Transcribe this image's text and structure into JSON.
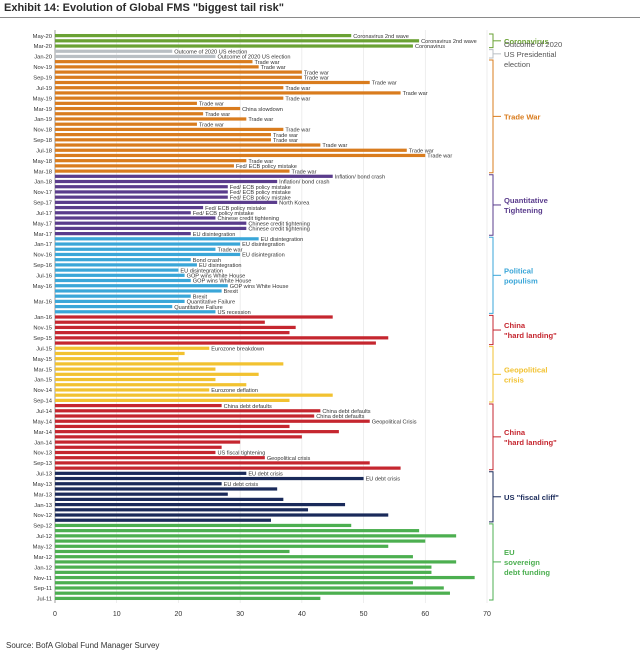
{
  "chart_data": {
    "type": "bar",
    "orientation": "horizontal",
    "title": "Exhibit 14: Evolution of Global FMS \"biggest tail risk\"",
    "source": "Source: BofA Global Fund Manager Survey",
    "xlim": [
      0,
      70
    ],
    "xticks": [
      0,
      10,
      20,
      30,
      40,
      50,
      60,
      70
    ],
    "colors": {
      "Coronavirus": "#6aa234",
      "Outcome of 2020 US Presidential election": "#b9bfc4",
      "Trade War": "#d97c1e",
      "Quantitative Tightening": "#5a3c8c",
      "Political populism": "#3aa6d8",
      "China \"hard landing\" 2015": "#c5262f",
      "Geopolitical crisis": "#f2c230",
      "China \"hard landing\" 2014": "#c5262f",
      "US \"fiscal cliff\"": "#1a2a5a",
      "EU sovereign debt funding": "#4caf50"
    },
    "series": [
      {
        "name": "Coronavirus",
        "category_labels": [
          "Coronavirus"
        ],
        "bars": [
          {
            "month": "May-20",
            "value": 48,
            "label": "Coronavirus 2nd wave"
          },
          {
            "month": "Apr-20",
            "value": 59,
            "label": "Coronavirus 2nd wave"
          },
          {
            "month": "Mar-20",
            "value": 58,
            "label": "Coronavirus"
          }
        ]
      },
      {
        "name": "Outcome of 2020 US Presidential election",
        "category_labels": [
          "Outcome of 2020",
          "US Presidential",
          "election"
        ],
        "bars": [
          {
            "month": "Feb-20",
            "value": 19,
            "label": "Outcome of 2020 US election"
          },
          {
            "month": "Jan-20",
            "value": 26,
            "label": "Outcome of 2020 US election"
          }
        ]
      },
      {
        "name": "Trade War",
        "category_labels": [
          "Trade War"
        ],
        "bars": [
          {
            "month": "Dec-19",
            "value": 32,
            "label": "Trade war"
          },
          {
            "month": "Nov-19",
            "value": 33,
            "label": "Trade war"
          },
          {
            "month": "Oct-19",
            "value": 40,
            "label": "Trade war"
          },
          {
            "month": "Sep-19",
            "value": 40,
            "label": "Trade war"
          },
          {
            "month": "Aug-19",
            "value": 51,
            "label": "Trade war"
          },
          {
            "month": "Jul-19",
            "value": 37,
            "label": "Trade war"
          },
          {
            "month": "Jun-19",
            "value": 56,
            "label": "Trade war"
          },
          {
            "month": "May-19",
            "value": 37,
            "label": "Trade war"
          },
          {
            "month": "Apr-19",
            "value": 23,
            "label": "Trade war"
          },
          {
            "month": "Mar-19",
            "value": 30,
            "label": "China slowdown"
          },
          {
            "month": "Feb-19",
            "value": 24,
            "label": "Trade war"
          },
          {
            "month": "Jan-19",
            "value": 31,
            "label": "Trade war"
          },
          {
            "month": "Dec-18",
            "value": 23,
            "label": "Trade war"
          },
          {
            "month": "Nov-18",
            "value": 37,
            "label": "Trade war"
          },
          {
            "month": "Oct-18",
            "value": 35,
            "label": "Trade war"
          },
          {
            "month": "Sep-18",
            "value": 35,
            "label": "Trade war"
          },
          {
            "month": "Aug-18",
            "value": 43,
            "label": "Trade war"
          },
          {
            "month": "Jul-18",
            "value": 57,
            "label": "Trade war"
          },
          {
            "month": "Jun-18",
            "value": 60,
            "label": "Trade war"
          },
          {
            "month": "May-18",
            "value": 31,
            "label": "Trade war"
          },
          {
            "month": "Apr-18",
            "value": 29,
            "label": "Fed/ ECB policy mistake"
          },
          {
            "month": "Mar-18",
            "value": 38,
            "label": "Trade war"
          }
        ]
      },
      {
        "name": "Quantitative Tightening",
        "category_labels": [
          "Quantitative",
          "Tightening"
        ],
        "bars": [
          {
            "month": "Feb-18",
            "value": 45,
            "label": "Inflation/ bond crash"
          },
          {
            "month": "Jan-18",
            "value": 36,
            "label": "Inflation/ bond crash"
          },
          {
            "month": "Dec-17",
            "value": 28,
            "label": "Fed/ ECB policy mistake"
          },
          {
            "month": "Nov-17",
            "value": 28,
            "label": "Fed/ ECB policy mistake"
          },
          {
            "month": "Oct-17",
            "value": 28,
            "label": "Fed/ ECB policy mistake"
          },
          {
            "month": "Sep-17",
            "value": 36,
            "label": "North Korea"
          },
          {
            "month": "Aug-17",
            "value": 24,
            "label": "Fed/ ECB policy mistake"
          },
          {
            "month": "Jul-17",
            "value": 22,
            "label": "Fed/ ECB policy mistake"
          },
          {
            "month": "Jun-17",
            "value": 26,
            "label": "Chinese credit tightening"
          },
          {
            "month": "May-17",
            "value": 31,
            "label": "Chinese credit tightening"
          },
          {
            "month": "Apr-17",
            "value": 31,
            "label": "Chinese credit tightening"
          },
          {
            "month": "Mar-17",
            "value": 22,
            "label": "EU disintegration"
          }
        ]
      },
      {
        "name": "Political populism",
        "category_labels": [
          "Political",
          "populism"
        ],
        "bars": [
          {
            "month": "Feb-17",
            "value": 33,
            "label": "EU disintegration"
          },
          {
            "month": "Jan-17",
            "value": 30,
            "label": "EU disintegration"
          },
          {
            "month": "Dec-16",
            "value": 26,
            "label": "Trade war"
          },
          {
            "month": "Nov-16",
            "value": 30,
            "label": "EU disintegration"
          },
          {
            "month": "Oct-16",
            "value": 22,
            "label": "Bond crash"
          },
          {
            "month": "Sep-16",
            "value": 23,
            "label": "EU disintegration"
          },
          {
            "month": "Aug-16",
            "value": 20,
            "label": "EU disintegration"
          },
          {
            "month": "Jul-16",
            "value": 21,
            "label": "GOP wins White House"
          },
          {
            "month": "Jun-16",
            "value": 22,
            "label": "GOP wins White House"
          },
          {
            "month": "May-16",
            "value": 28,
            "label": "GOP wins White House"
          },
          {
            "month": "Apr-16",
            "value": 27,
            "label": "Brexit"
          },
          {
            "month": "Apr-16",
            "value": 22,
            "label": "Brexit"
          },
          {
            "month": "Mar-16",
            "value": 21,
            "label": "Quantitative Failure"
          },
          {
            "month": "Feb-16",
            "value": 19,
            "label": "Quantitative Failure"
          },
          {
            "month": "Feb-16",
            "value": 26,
            "label": "US recession"
          }
        ]
      },
      {
        "name": "China \"hard landing\" 2015",
        "category_labels": [
          "China",
          "\"hard landing\""
        ],
        "bars": [
          {
            "month": "Jan-16",
            "value": 45,
            "label": ""
          },
          {
            "month": "Dec-15",
            "value": 34,
            "label": ""
          },
          {
            "month": "Nov-15",
            "value": 39,
            "label": ""
          },
          {
            "month": "Oct-15",
            "value": 38,
            "label": ""
          },
          {
            "month": "Sep-15",
            "value": 54,
            "label": ""
          },
          {
            "month": "Aug-15",
            "value": 52,
            "label": ""
          }
        ]
      },
      {
        "name": "Geopolitical crisis",
        "category_labels": [
          "Geopolitical",
          "crisis"
        ],
        "bars": [
          {
            "month": "Jul-15",
            "value": 25,
            "label": "Eurozone breakdown"
          },
          {
            "month": "Jun-15",
            "value": 21,
            "label": ""
          },
          {
            "month": "May-15",
            "value": 20,
            "label": ""
          },
          {
            "month": "Apr-15",
            "value": 37,
            "label": ""
          },
          {
            "month": "Mar-15",
            "value": 26,
            "label": ""
          },
          {
            "month": "Feb-15",
            "value": 33,
            "label": ""
          },
          {
            "month": "Jan-15",
            "value": 26,
            "label": ""
          },
          {
            "month": "Dec-14",
            "value": 31,
            "label": ""
          },
          {
            "month": "Nov-14",
            "value": 25,
            "label": "Eurozone deflation"
          },
          {
            "month": "Oct-14",
            "value": 45,
            "label": ""
          },
          {
            "month": "Sep-14",
            "value": 38,
            "label": ""
          }
        ]
      },
      {
        "name": "China \"hard landing\" 2014",
        "category_labels": [
          "China",
          "\"hard landing\""
        ],
        "bars": [
          {
            "month": "Aug-14",
            "value": 27,
            "label": "China debt defaults"
          },
          {
            "month": "Jul-14",
            "value": 43,
            "label": "China debt defaults"
          },
          {
            "month": "Jun-14",
            "value": 42,
            "label": "China debt defaults"
          },
          {
            "month": "May-14",
            "value": 51,
            "label": "Geopolitical Crisis"
          },
          {
            "month": "Apr-14",
            "value": 38,
            "label": ""
          },
          {
            "month": "Mar-14",
            "value": 46,
            "label": ""
          },
          {
            "month": "Feb-14",
            "value": 40,
            "label": ""
          },
          {
            "month": "Jan-14",
            "value": 30,
            "label": ""
          },
          {
            "month": "Dec-13",
            "value": 27,
            "label": ""
          },
          {
            "month": "Nov-13",
            "value": 26,
            "label": "US fiscal tightening"
          },
          {
            "month": "Oct-13",
            "value": 34,
            "label": "Geopolitical crisis"
          },
          {
            "month": "Sep-13",
            "value": 51,
            "label": ""
          },
          {
            "month": "Aug-13",
            "value": 56,
            "label": ""
          }
        ]
      },
      {
        "name": "US \"fiscal cliff\"",
        "category_labels": [
          "US \"fiscal cliff\""
        ],
        "bars": [
          {
            "month": "Jul-13",
            "value": 31,
            "label": "EU debt crisis"
          },
          {
            "month": "Jun-13",
            "value": 50,
            "label": "EU debt crisis"
          },
          {
            "month": "May-13",
            "value": 27,
            "label": "EU debt crisis"
          },
          {
            "month": "Apr-13",
            "value": 36,
            "label": ""
          },
          {
            "month": "Mar-13",
            "value": 28,
            "label": ""
          },
          {
            "month": "Feb-13",
            "value": 37,
            "label": ""
          },
          {
            "month": "Jan-13",
            "value": 47,
            "label": ""
          },
          {
            "month": "Dec-12",
            "value": 41,
            "label": ""
          },
          {
            "month": "Nov-12",
            "value": 54,
            "label": ""
          },
          {
            "month": "Oct-12",
            "value": 35,
            "label": ""
          }
        ]
      },
      {
        "name": "EU sovereign debt funding",
        "category_labels": [
          "EU",
          "sovereign",
          "debt funding"
        ],
        "bars": [
          {
            "month": "Sep-12",
            "value": 48,
            "label": ""
          },
          {
            "month": "Aug-12",
            "value": 59,
            "label": ""
          },
          {
            "month": "Jul-12",
            "value": 65,
            "label": ""
          },
          {
            "month": "Jun-12",
            "value": 60,
            "label": ""
          },
          {
            "month": "May-12",
            "value": 54,
            "label": ""
          },
          {
            "month": "Apr-12",
            "value": 38,
            "label": ""
          },
          {
            "month": "Mar-12",
            "value": 58,
            "label": ""
          },
          {
            "month": "Feb-12",
            "value": 65,
            "label": ""
          },
          {
            "month": "Jan-12",
            "value": 61,
            "label": ""
          },
          {
            "month": "Dec-11",
            "value": 61,
            "label": ""
          },
          {
            "month": "Nov-11",
            "value": 68,
            "label": ""
          },
          {
            "month": "Oct-11",
            "value": 58,
            "label": ""
          },
          {
            "month": "Sep-11",
            "value": 63,
            "label": ""
          },
          {
            "month": "Aug-11",
            "value": 64,
            "label": ""
          },
          {
            "month": "Jul-11",
            "value": 43,
            "label": ""
          }
        ]
      }
    ],
    "shown_month_labels": [
      "May-20",
      "Mar-20",
      "Jan-20",
      "Nov-19",
      "Sep-19",
      "Jul-19",
      "May-19",
      "Mar-19",
      "Jan-19",
      "Nov-18",
      "Sep-18",
      "Jul-18",
      "May-18",
      "Mar-18",
      "Jan-18",
      "Nov-17",
      "Sep-17",
      "Jul-17",
      "May-17",
      "Mar-17",
      "Jan-17",
      "Nov-16",
      "Sep-16",
      "Jul-16",
      "May-16",
      "Mar-16",
      "Jan-16",
      "Nov-15",
      "Sep-15",
      "Jul-15",
      "May-15",
      "Mar-15",
      "Jan-15",
      "Nov-14",
      "Sep-14",
      "Jul-14",
      "May-14",
      "Mar-14",
      "Jan-14",
      "Nov-13",
      "Sep-13",
      "Jul-13",
      "May-13",
      "Mar-13",
      "Jan-13",
      "Nov-12",
      "Sep-12",
      "Jul-12",
      "May-12",
      "Mar-12",
      "Jan-12",
      "Nov-11",
      "Sep-11",
      "Jul-11"
    ]
  }
}
